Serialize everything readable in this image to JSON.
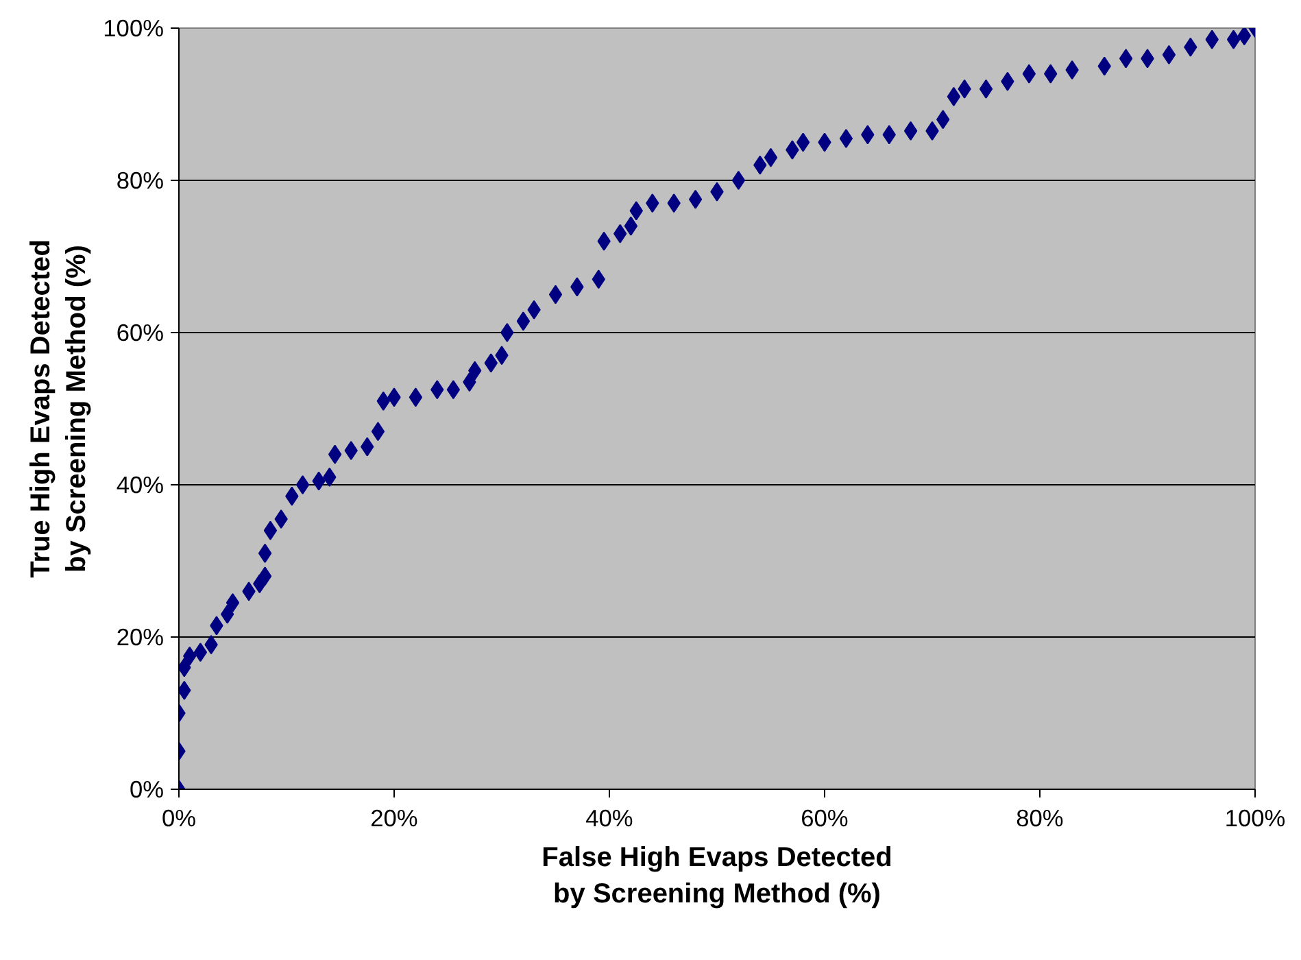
{
  "chart_data": {
    "type": "scatter",
    "xlabel": "False High Evaps Detected\nby Screening Method (%)",
    "ylabel": "True High Evaps Detected\nby Screening Method (%)",
    "marker": "diamond",
    "grid": "y",
    "xlim": [
      0,
      100
    ],
    "ylim": [
      0,
      100
    ],
    "xticks": [
      {
        "value": 0,
        "label": "0%"
      },
      {
        "value": 20,
        "label": "20%"
      },
      {
        "value": 40,
        "label": "40%"
      },
      {
        "value": 60,
        "label": "60%"
      },
      {
        "value": 80,
        "label": "80%"
      },
      {
        "value": 100,
        "label": "100%"
      }
    ],
    "yticks": [
      {
        "value": 0,
        "label": "0%"
      },
      {
        "value": 20,
        "label": "20%"
      },
      {
        "value": 40,
        "label": "40%"
      },
      {
        "value": 60,
        "label": "60%"
      },
      {
        "value": 80,
        "label": "80%"
      },
      {
        "value": 100,
        "label": "100%"
      }
    ],
    "series": [
      {
        "color": "#000080",
        "x": [
          0,
          0,
          0,
          0.5,
          0.5,
          1,
          2,
          3,
          3.5,
          4.5,
          5,
          6.5,
          7.5,
          8,
          8,
          8.5,
          9.5,
          10.5,
          11.5,
          13,
          14,
          14.5,
          16,
          17.5,
          18.5,
          19,
          20,
          22,
          24,
          25.5,
          27,
          27.5,
          29,
          30,
          30.5,
          32,
          33,
          35,
          37,
          39,
          39.5,
          41,
          42,
          42.5,
          44,
          46,
          48,
          50,
          52,
          54,
          55,
          57,
          58,
          60,
          62,
          64,
          66,
          68,
          70,
          71,
          72,
          73,
          75,
          77,
          79,
          81,
          83,
          86,
          88,
          90,
          92,
          94,
          96,
          98,
          99,
          100
        ],
        "values": [
          0,
          5,
          10,
          13,
          16,
          17.5,
          18,
          19,
          21.5,
          23,
          24.5,
          26,
          27,
          28,
          31,
          34,
          35.5,
          38.5,
          40,
          40.5,
          41,
          44,
          44.5,
          45,
          47,
          51,
          51.5,
          51.5,
          52.5,
          52.5,
          53.5,
          55,
          56,
          57,
          60,
          61.5,
          63,
          65,
          66,
          67,
          72,
          73,
          74,
          76,
          77,
          77,
          77.5,
          78.5,
          80,
          82,
          83,
          84,
          85,
          85,
          85.5,
          86,
          86,
          86.5,
          86.5,
          88,
          91,
          92,
          92,
          93,
          94,
          94,
          94.5,
          95,
          96,
          96,
          96.5,
          97.5,
          98.5,
          98.5,
          99,
          100
        ]
      }
    ]
  }
}
